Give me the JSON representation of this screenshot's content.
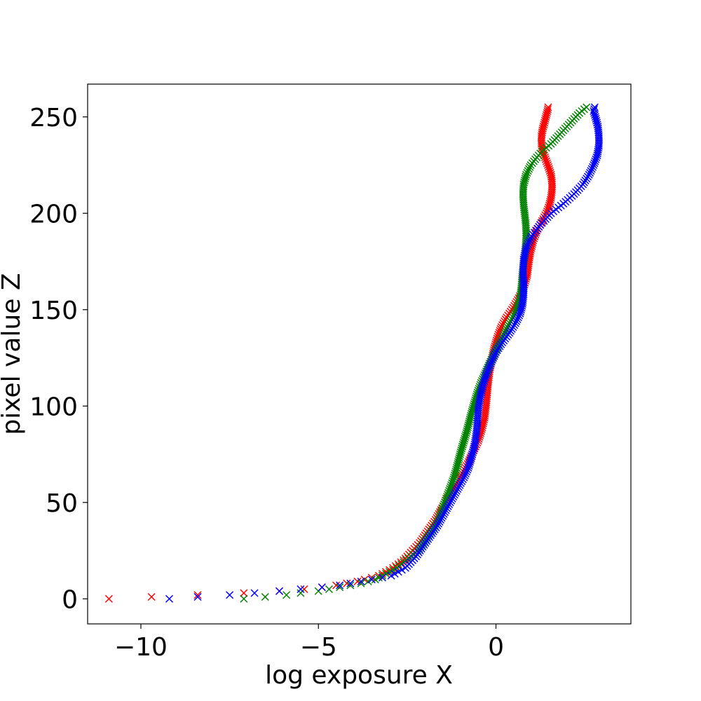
{
  "chart_data": {
    "type": "scatter",
    "title": "",
    "xlabel": "log exposure X",
    "ylabel": "pixel value Z",
    "xlim": [
      -11.5,
      3.8
    ],
    "ylim": [
      -13,
      267
    ],
    "xticks": [
      -10,
      -5,
      0
    ],
    "xtick_labels": [
      "−10",
      "−5",
      "0"
    ],
    "yticks": [
      0,
      50,
      100,
      150,
      200,
      250
    ],
    "ytick_labels": [
      "0",
      "50",
      "100",
      "150",
      "200",
      "250"
    ],
    "grid": false,
    "legend": "none",
    "marker": "x",
    "series": [
      {
        "color": "#ff0000",
        "points": [
          [
            -10.9,
            0
          ],
          [
            -9.7,
            1
          ],
          [
            -8.4,
            2
          ],
          [
            -7.1,
            3
          ],
          [
            -6.1,
            4
          ],
          [
            -5.4,
            5
          ],
          [
            -4.9,
            6
          ],
          [
            -4.5,
            7
          ],
          [
            -4.2,
            8
          ],
          [
            -3.9,
            9
          ],
          [
            -3.7,
            10
          ],
          [
            -3.5,
            11
          ],
          [
            -3.3,
            12
          ],
          [
            -3.1,
            14
          ],
          [
            -2.9,
            16
          ],
          [
            -2.75,
            18
          ],
          [
            -2.6,
            20
          ],
          [
            -2.45,
            23
          ],
          [
            -2.3,
            26
          ],
          [
            -2.15,
            29
          ],
          [
            -2.0,
            33
          ],
          [
            -1.85,
            37
          ],
          [
            -1.7,
            41
          ],
          [
            -1.55,
            46
          ],
          [
            -1.4,
            51
          ],
          [
            -1.25,
            55
          ],
          [
            -1.1,
            60
          ],
          [
            -0.95,
            65
          ],
          [
            -0.8,
            70
          ],
          [
            -0.65,
            76
          ],
          [
            -0.5,
            82
          ],
          [
            -0.4,
            88
          ],
          [
            -0.32,
            94
          ],
          [
            -0.28,
            100
          ],
          [
            -0.25,
            106
          ],
          [
            -0.22,
            112
          ],
          [
            -0.18,
            118
          ],
          [
            -0.12,
            124
          ],
          [
            -0.05,
            130
          ],
          [
            0.05,
            136
          ],
          [
            0.15,
            141
          ],
          [
            0.3,
            146
          ],
          [
            0.45,
            150
          ],
          [
            0.58,
            154
          ],
          [
            0.7,
            158
          ],
          [
            0.8,
            163
          ],
          [
            0.88,
            168
          ],
          [
            0.92,
            174
          ],
          [
            0.97,
            180
          ],
          [
            1.05,
            186
          ],
          [
            1.15,
            191
          ],
          [
            1.3,
            196
          ],
          [
            1.42,
            200
          ],
          [
            1.5,
            204
          ],
          [
            1.55,
            208
          ],
          [
            1.58,
            212
          ],
          [
            1.58,
            216
          ],
          [
            1.55,
            220
          ],
          [
            1.48,
            224
          ],
          [
            1.4,
            228
          ],
          [
            1.32,
            232
          ],
          [
            1.28,
            236
          ],
          [
            1.28,
            240
          ],
          [
            1.32,
            244
          ],
          [
            1.38,
            248
          ],
          [
            1.42,
            251
          ],
          [
            1.45,
            253
          ],
          [
            1.47,
            255
          ]
        ]
      },
      {
        "color": "#008000",
        "points": [
          [
            -7.1,
            0
          ],
          [
            -6.5,
            1
          ],
          [
            -5.9,
            2
          ],
          [
            -5.5,
            3
          ],
          [
            -5.0,
            4
          ],
          [
            -4.7,
            5
          ],
          [
            -4.4,
            6
          ],
          [
            -4.1,
            7
          ],
          [
            -3.8,
            8
          ],
          [
            -3.6,
            9
          ],
          [
            -3.4,
            10
          ],
          [
            -3.2,
            12
          ],
          [
            -3.0,
            14
          ],
          [
            -2.8,
            16
          ],
          [
            -2.6,
            19
          ],
          [
            -2.4,
            22
          ],
          [
            -2.2,
            25
          ],
          [
            -2.05,
            29
          ],
          [
            -1.9,
            33
          ],
          [
            -1.75,
            37
          ],
          [
            -1.6,
            42
          ],
          [
            -1.5,
            47
          ],
          [
            -1.4,
            52
          ],
          [
            -1.3,
            57
          ],
          [
            -1.2,
            62
          ],
          [
            -1.12,
            67
          ],
          [
            -1.05,
            72
          ],
          [
            -0.98,
            77
          ],
          [
            -0.9,
            82
          ],
          [
            -0.82,
            87
          ],
          [
            -0.75,
            92
          ],
          [
            -0.68,
            97
          ],
          [
            -0.6,
            102
          ],
          [
            -0.52,
            107
          ],
          [
            -0.42,
            112
          ],
          [
            -0.3,
            117
          ],
          [
            -0.18,
            122
          ],
          [
            -0.05,
            127
          ],
          [
            0.08,
            132
          ],
          [
            0.22,
            137
          ],
          [
            0.35,
            142
          ],
          [
            0.48,
            146
          ],
          [
            0.6,
            151
          ],
          [
            0.68,
            156
          ],
          [
            0.72,
            162
          ],
          [
            0.74,
            168
          ],
          [
            0.78,
            174
          ],
          [
            0.82,
            180
          ],
          [
            0.85,
            186
          ],
          [
            0.85,
            192
          ],
          [
            0.82,
            198
          ],
          [
            0.78,
            204
          ],
          [
            0.76,
            210
          ],
          [
            0.78,
            215
          ],
          [
            0.85,
            220
          ],
          [
            0.98,
            225
          ],
          [
            1.15,
            229
          ],
          [
            1.35,
            233
          ],
          [
            1.55,
            236
          ],
          [
            1.75,
            240
          ],
          [
            1.95,
            244
          ],
          [
            2.15,
            248
          ],
          [
            2.35,
            252
          ],
          [
            2.55,
            255
          ]
        ]
      },
      {
        "color": "#0000ff",
        "points": [
          [
            -9.2,
            0
          ],
          [
            -8.4,
            1
          ],
          [
            -7.5,
            2
          ],
          [
            -6.8,
            3
          ],
          [
            -6.1,
            4
          ],
          [
            -5.5,
            5
          ],
          [
            -4.9,
            6
          ],
          [
            -4.4,
            7
          ],
          [
            -4.1,
            8
          ],
          [
            -3.8,
            9
          ],
          [
            -3.5,
            10
          ],
          [
            -3.2,
            11
          ],
          [
            -2.95,
            12
          ],
          [
            -2.75,
            14
          ],
          [
            -2.55,
            16
          ],
          [
            -2.4,
            19
          ],
          [
            -2.25,
            22
          ],
          [
            -2.1,
            26
          ],
          [
            -1.95,
            30
          ],
          [
            -1.8,
            34
          ],
          [
            -1.65,
            38
          ],
          [
            -1.5,
            43
          ],
          [
            -1.35,
            48
          ],
          [
            -1.2,
            53
          ],
          [
            -1.05,
            58
          ],
          [
            -0.9,
            63
          ],
          [
            -0.78,
            68
          ],
          [
            -0.68,
            74
          ],
          [
            -0.6,
            80
          ],
          [
            -0.55,
            86
          ],
          [
            -0.52,
            92
          ],
          [
            -0.5,
            98
          ],
          [
            -0.45,
            104
          ],
          [
            -0.38,
            110
          ],
          [
            -0.28,
            116
          ],
          [
            -0.15,
            122
          ],
          [
            0.0,
            128
          ],
          [
            0.18,
            133
          ],
          [
            0.38,
            138
          ],
          [
            0.55,
            143
          ],
          [
            0.68,
            148
          ],
          [
            0.75,
            153
          ],
          [
            0.78,
            158
          ],
          [
            0.78,
            164
          ],
          [
            0.76,
            170
          ],
          [
            0.78,
            176
          ],
          [
            0.85,
            182
          ],
          [
            1.0,
            188
          ],
          [
            1.25,
            194
          ],
          [
            1.55,
            200
          ],
          [
            1.9,
            205
          ],
          [
            2.2,
            210
          ],
          [
            2.45,
            215
          ],
          [
            2.62,
            220
          ],
          [
            2.75,
            225
          ],
          [
            2.85,
            230
          ],
          [
            2.9,
            235
          ],
          [
            2.9,
            240
          ],
          [
            2.87,
            245
          ],
          [
            2.8,
            250
          ],
          [
            2.75,
            253
          ],
          [
            2.78,
            255
          ]
        ]
      }
    ]
  }
}
